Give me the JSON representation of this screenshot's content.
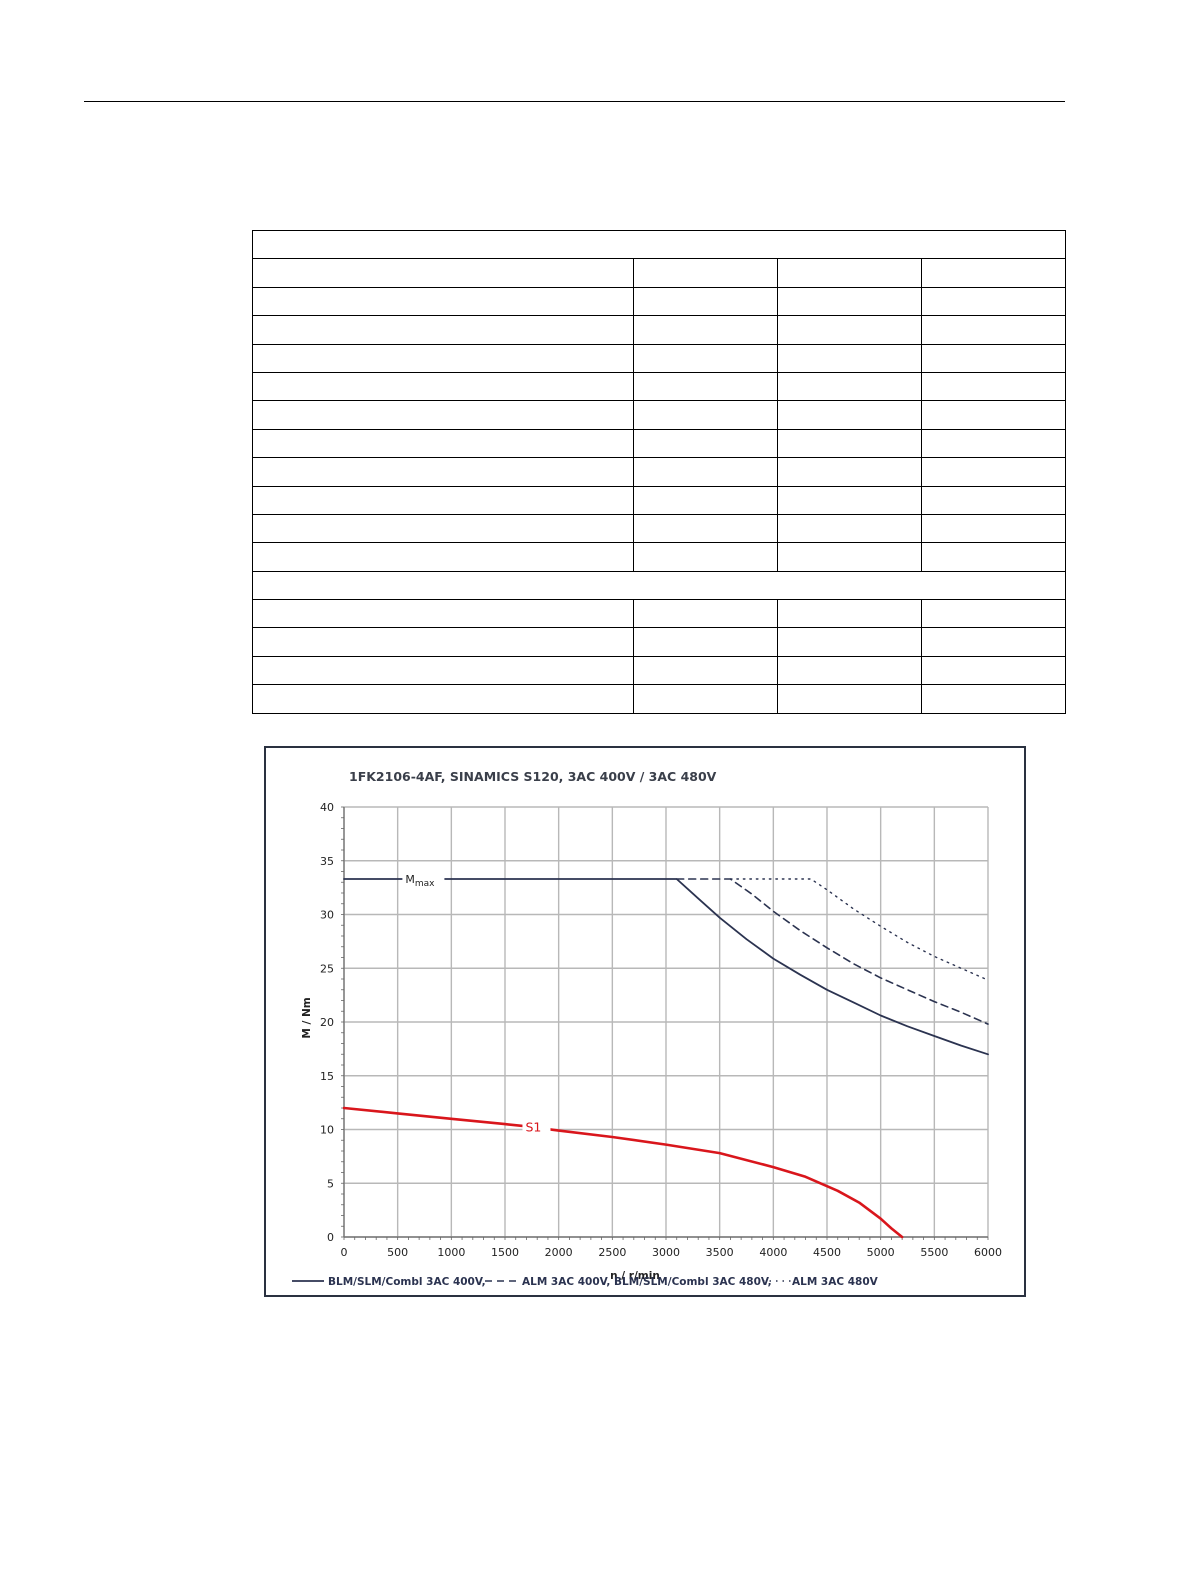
{
  "table": {
    "column_count": 4,
    "rows": [
      {
        "type": "full",
        "cells": [
          ""
        ]
      },
      {
        "type": "split",
        "cells": [
          "",
          "",
          "",
          ""
        ]
      },
      {
        "type": "split",
        "cells": [
          "",
          "",
          "",
          ""
        ]
      },
      {
        "type": "split",
        "cells": [
          "",
          "",
          "",
          ""
        ]
      },
      {
        "type": "split",
        "cells": [
          "",
          "",
          "",
          ""
        ]
      },
      {
        "type": "split",
        "cells": [
          "",
          "",
          "",
          ""
        ]
      },
      {
        "type": "split",
        "cells": [
          "",
          "",
          "",
          ""
        ]
      },
      {
        "type": "split",
        "cells": [
          "",
          "",
          "",
          ""
        ]
      },
      {
        "type": "split",
        "cells": [
          "",
          "",
          "",
          ""
        ]
      },
      {
        "type": "split",
        "cells": [
          "",
          "",
          "",
          ""
        ]
      },
      {
        "type": "split",
        "cells": [
          "",
          "",
          "",
          ""
        ]
      },
      {
        "type": "split",
        "cells": [
          "",
          "",
          "",
          ""
        ]
      },
      {
        "type": "full",
        "cells": [
          ""
        ]
      },
      {
        "type": "split",
        "cells": [
          "",
          "",
          "",
          ""
        ]
      },
      {
        "type": "split",
        "cells": [
          "",
          "",
          "",
          ""
        ]
      },
      {
        "type": "split",
        "cells": [
          "",
          "",
          "",
          ""
        ]
      },
      {
        "type": "split",
        "cells": [
          "",
          "",
          "",
          ""
        ]
      }
    ]
  },
  "chart_data": {
    "type": "line",
    "title": "1FK2106-4AF,  SINAMICS S120,  3AC 400V / 3AC 480V",
    "xlabel": "n / r/min",
    "ylabel": "M / Nm",
    "xlim": [
      0,
      6000
    ],
    "ylim": [
      0,
      40
    ],
    "xticks": [
      0,
      500,
      1000,
      1500,
      2000,
      2500,
      3000,
      3500,
      4000,
      4500,
      5000,
      5500,
      6000
    ],
    "yticks": [
      0,
      5,
      10,
      15,
      20,
      25,
      30,
      35,
      40
    ],
    "grid": true,
    "legend_position": "bottom",
    "annotations": {
      "mmax_label": "M",
      "mmax_sub": "max",
      "s1_label": "S1"
    },
    "colors": {
      "blm": "#2b3350",
      "s1": "#d9161c",
      "grid": "#b8b8b8",
      "frame": "#2a3140"
    },
    "series": [
      {
        "name": "BLM/SLM/Combl 3AC 400V,",
        "style": "solid",
        "x": [
          0,
          3100,
          3300,
          3500,
          3750,
          4000,
          4250,
          4500,
          4750,
          5000,
          5250,
          5500,
          5750,
          6000
        ],
        "y": [
          33.3,
          33.3,
          31.5,
          29.7,
          27.7,
          25.9,
          24.4,
          23.0,
          21.8,
          20.6,
          19.6,
          18.7,
          17.8,
          17.0
        ]
      },
      {
        "name": "ALM 3AC 400V, BLM/SLM/Combl 3AC 480V,",
        "style": "dashed",
        "x": [
          3100,
          3600,
          3800,
          4000,
          4250,
          4500,
          4750,
          5000,
          5250,
          5500,
          5750,
          6000
        ],
        "y": [
          33.3,
          33.3,
          31.9,
          30.3,
          28.5,
          26.9,
          25.4,
          24.1,
          23.0,
          21.9,
          20.9,
          19.8
        ]
      },
      {
        "name": "ALM 3AC 480V",
        "style": "dotted",
        "x": [
          3600,
          4350,
          4500,
          4750,
          5000,
          5250,
          5500,
          5750,
          6000
        ],
        "y": [
          33.3,
          33.3,
          32.3,
          30.5,
          28.9,
          27.4,
          26.1,
          25.0,
          23.9
        ]
      },
      {
        "name": "S1",
        "style": "solid-red",
        "x": [
          0,
          500,
          1000,
          1500,
          1700,
          2000,
          2500,
          3000,
          3500,
          4000,
          4300,
          4600,
          4800,
          5000,
          5100,
          5200
        ],
        "y": [
          12.0,
          11.5,
          11.0,
          10.5,
          10.3,
          9.9,
          9.3,
          8.6,
          7.8,
          6.5,
          5.6,
          4.3,
          3.2,
          1.7,
          0.8,
          0.0
        ]
      }
    ],
    "legend": [
      {
        "sample": "———",
        "label": "BLM/SLM/Combl 3AC 400V,",
        "style": "solid"
      },
      {
        "sample": "- - - -",
        "label": "ALM 3AC 400V, BLM/SLM/Combl 3AC 480V,",
        "style": "dashed"
      },
      {
        "sample": ". . . .",
        "label": "ALM 3AC 480V",
        "style": "dotted"
      }
    ]
  }
}
